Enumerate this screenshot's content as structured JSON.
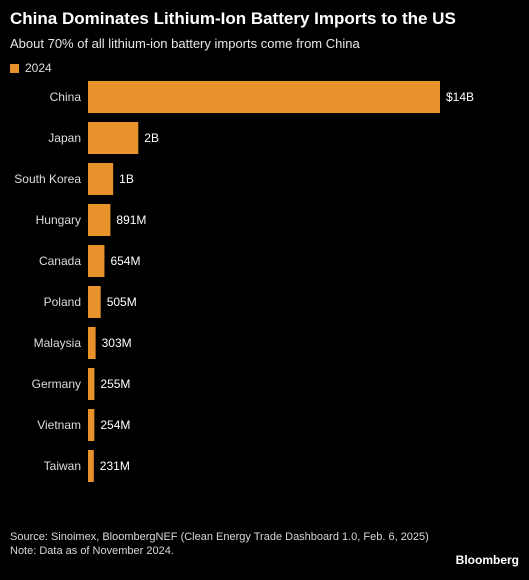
{
  "header": {
    "title": "China Dominates Lithium-Ion Battery Imports to the US",
    "subtitle": "About 70% of all lithium-ion battery imports come from China"
  },
  "legend": {
    "label": "2024",
    "color": "#e8922b"
  },
  "chart_data": {
    "type": "bar",
    "orientation": "horizontal",
    "title": "China Dominates Lithium-Ion Battery Imports to the US",
    "subtitle": "About 70% of all lithium-ion battery imports come from China",
    "categories": [
      "China",
      "Japan",
      "South Korea",
      "Hungary",
      "Canada",
      "Poland",
      "Malaysia",
      "Germany",
      "Vietnam",
      "Taiwan"
    ],
    "series": [
      {
        "name": "2024",
        "color": "#e8922b",
        "values": [
          14000000000,
          2000000000,
          1000000000,
          891000000,
          654000000,
          505000000,
          303000000,
          255000000,
          254000000,
          231000000
        ],
        "labels": [
          "$14B",
          "2B",
          "1B",
          "891M",
          "654M",
          "505M",
          "303M",
          "255M",
          "254M",
          "231M"
        ]
      }
    ],
    "xlim": [
      0,
      14000000000
    ],
    "grid": false,
    "legend_position": "top-left"
  },
  "footer": {
    "source": "Source: Sinoimex, BloombergNEF (Clean Energy Trade Dashboard 1.0, Feb. 6, 2025)",
    "note": "Note: Data as of November 2024."
  },
  "brand": "Bloomberg"
}
